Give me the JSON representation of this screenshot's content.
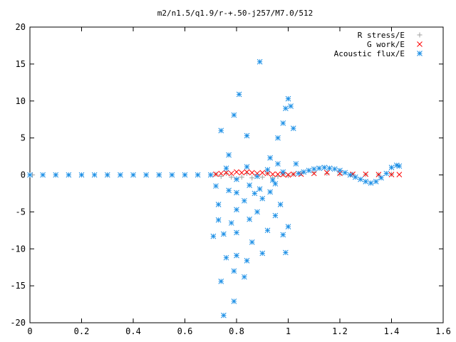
{
  "chart_data": {
    "type": "scatter",
    "title": "m2/n1.5/q1.9/r-+.50-j257/M7.0/512",
    "xlabel": "",
    "ylabel": "",
    "xlim": [
      0,
      1.6
    ],
    "ylim": [
      -20,
      20
    ],
    "x_ticks": [
      "0",
      "0.2",
      "0.4",
      "0.6",
      "0.8",
      "1",
      "1.2",
      "1.4",
      "1.6"
    ],
    "y_ticks": [
      "20",
      "15",
      "10",
      "5",
      "0",
      "-5",
      "-10",
      "-15",
      "-20"
    ],
    "grid": false,
    "legend_position": "top-right",
    "series": [
      {
        "name": "R stress/E",
        "marker": "+",
        "color": "#a0a0a0",
        "points": [
          [
            0.01,
            0
          ],
          [
            0.1,
            0
          ],
          [
            0.2,
            0
          ],
          [
            0.3,
            0
          ],
          [
            0.4,
            0
          ],
          [
            0.5,
            0
          ],
          [
            0.6,
            0
          ],
          [
            0.7,
            0
          ],
          [
            0.72,
            0.1
          ],
          [
            0.74,
            -0.2
          ],
          [
            0.76,
            0.2
          ],
          [
            0.78,
            -0.3
          ],
          [
            0.8,
            -0.5
          ],
          [
            0.82,
            -0.3
          ],
          [
            0.84,
            0.2
          ],
          [
            0.86,
            -0.4
          ],
          [
            0.88,
            -0.2
          ],
          [
            0.9,
            -0.3
          ],
          [
            0.92,
            0.2
          ],
          [
            0.94,
            -0.4
          ],
          [
            0.96,
            -0.2
          ],
          [
            0.98,
            0.1
          ],
          [
            1.0,
            -0.1
          ],
          [
            1.02,
            0.1
          ],
          [
            1.05,
            0.2
          ],
          [
            1.1,
            0.3
          ],
          [
            1.15,
            0.2
          ],
          [
            1.2,
            0.1
          ],
          [
            1.25,
            0.1
          ],
          [
            1.3,
            0.05
          ],
          [
            1.35,
            0.05
          ],
          [
            1.4,
            0.1
          ]
        ]
      },
      {
        "name": "G work/E",
        "marker": "x",
        "color": "#ff0000",
        "points": [
          [
            0.72,
            0.1
          ],
          [
            0.74,
            0.2
          ],
          [
            0.76,
            0.3
          ],
          [
            0.78,
            0.2
          ],
          [
            0.8,
            0.4
          ],
          [
            0.82,
            0.3
          ],
          [
            0.84,
            0.4
          ],
          [
            0.86,
            0.3
          ],
          [
            0.88,
            0.2
          ],
          [
            0.9,
            0.3
          ],
          [
            0.92,
            0.2
          ],
          [
            0.94,
            0.1
          ],
          [
            0.96,
            0.1
          ],
          [
            0.98,
            0.05
          ],
          [
            1.0,
            0.0
          ],
          [
            1.02,
            0.1
          ],
          [
            1.05,
            0.1
          ],
          [
            1.1,
            0.2
          ],
          [
            1.15,
            0.3
          ],
          [
            1.2,
            0.2
          ],
          [
            1.25,
            0.1
          ],
          [
            1.3,
            0.1
          ],
          [
            1.35,
            0.05
          ],
          [
            1.4,
            0.05
          ],
          [
            1.43,
            0.05
          ]
        ]
      },
      {
        "name": "Acoustic flux/E",
        "marker": "*",
        "color": "#1e90e6",
        "points": [
          [
            0.75,
            -19.0
          ],
          [
            0.79,
            -17.1
          ],
          [
            0.74,
            -14.4
          ],
          [
            0.79,
            -13.0
          ],
          [
            0.83,
            -13.8
          ],
          [
            0.84,
            -11.6
          ],
          [
            0.76,
            -11.2
          ],
          [
            0.8,
            -10.9
          ],
          [
            0.9,
            -10.6
          ],
          [
            0.99,
            -10.5
          ],
          [
            0.71,
            -8.3
          ],
          [
            0.75,
            -8.0
          ],
          [
            0.8,
            -7.8
          ],
          [
            0.86,
            -9.1
          ],
          [
            0.92,
            -7.5
          ],
          [
            0.98,
            -8.1
          ],
          [
            1.0,
            -7.0
          ],
          [
            0.73,
            -6.1
          ],
          [
            0.78,
            -6.5
          ],
          [
            0.85,
            -6.0
          ],
          [
            0.88,
            -5.0
          ],
          [
            0.95,
            -5.5
          ],
          [
            0.97,
            -4.0
          ],
          [
            0.73,
            -4.0
          ],
          [
            0.8,
            -4.7
          ],
          [
            0.83,
            -3.5
          ],
          [
            0.87,
            -2.5
          ],
          [
            0.9,
            -3.2
          ],
          [
            0.93,
            -2.3
          ],
          [
            0.95,
            -1.2
          ],
          [
            0.72,
            -1.5
          ],
          [
            0.77,
            -2.1
          ],
          [
            0.8,
            -2.4
          ],
          [
            0.85,
            -1.4
          ],
          [
            0.89,
            -1.9
          ],
          [
            0.94,
            -0.7
          ],
          [
            0.98,
            0.4
          ],
          [
            0.76,
            0.9
          ],
          [
            0.8,
            -0.6
          ],
          [
            0.84,
            1.1
          ],
          [
            0.88,
            -0.2
          ],
          [
            0.92,
            0.7
          ],
          [
            0.96,
            1.5
          ],
          [
            0.74,
            6.0
          ],
          [
            0.77,
            2.7
          ],
          [
            0.79,
            8.1
          ],
          [
            0.81,
            10.9
          ],
          [
            0.84,
            5.3
          ],
          [
            0.89,
            15.3
          ],
          [
            0.93,
            2.3
          ],
          [
            0.96,
            5.0
          ],
          [
            0.98,
            7.0
          ],
          [
            0.99,
            9.0
          ],
          [
            1.0,
            10.3
          ],
          [
            1.01,
            9.3
          ],
          [
            1.02,
            6.3
          ],
          [
            1.03,
            1.5
          ],
          [
            0.0,
            0
          ],
          [
            0.05,
            0
          ],
          [
            0.1,
            0
          ],
          [
            0.15,
            0
          ],
          [
            0.2,
            0
          ],
          [
            0.25,
            0
          ],
          [
            0.3,
            0
          ],
          [
            0.35,
            0
          ],
          [
            0.4,
            0
          ],
          [
            0.45,
            0
          ],
          [
            0.5,
            0
          ],
          [
            0.55,
            0
          ],
          [
            0.6,
            0
          ],
          [
            0.65,
            0
          ],
          [
            0.7,
            0
          ],
          [
            1.04,
            0.2
          ],
          [
            1.06,
            0.4
          ],
          [
            1.08,
            0.6
          ],
          [
            1.1,
            0.8
          ],
          [
            1.12,
            0.9
          ],
          [
            1.14,
            1.0
          ],
          [
            1.16,
            0.9
          ],
          [
            1.18,
            0.8
          ],
          [
            1.2,
            0.6
          ],
          [
            1.22,
            0.3
          ],
          [
            1.24,
            0.0
          ],
          [
            1.26,
            -0.3
          ],
          [
            1.28,
            -0.6
          ],
          [
            1.3,
            -0.9
          ],
          [
            1.32,
            -1.1
          ],
          [
            1.34,
            -0.9
          ],
          [
            1.36,
            -0.4
          ],
          [
            1.38,
            0.2
          ],
          [
            1.4,
            1.0
          ],
          [
            1.42,
            1.3
          ],
          [
            1.43,
            1.2
          ]
        ]
      }
    ]
  }
}
